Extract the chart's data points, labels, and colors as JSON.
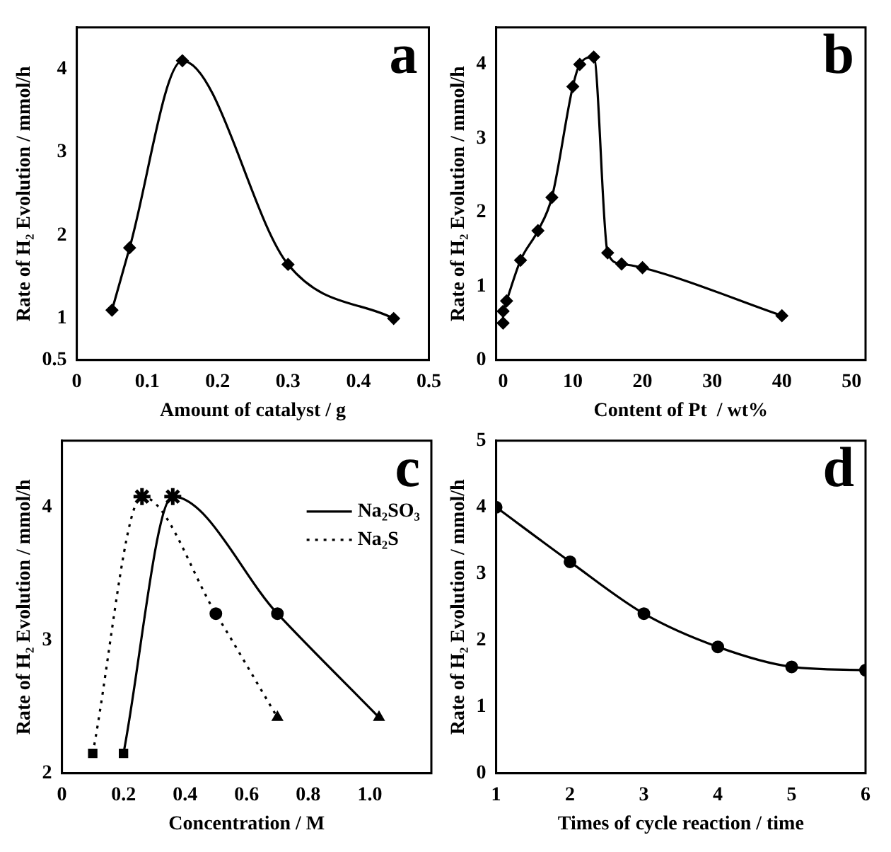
{
  "chart_data": [
    {
      "type": "line",
      "annotations": [
        "a"
      ],
      "xlabel": "Amount of catalyst / g",
      "ylabel": "Rate of H₂ Evolution / mmol/h",
      "x": [
        0.05,
        0.075,
        0.15,
        0.3,
        0.45
      ],
      "xlim": [
        0,
        0.5
      ],
      "xticks": [
        0,
        0.1,
        0.2,
        0.3,
        0.4,
        0.5
      ],
      "ylim": [
        0.5,
        4.5
      ],
      "yticks": [
        0.5,
        1,
        2,
        3,
        4
      ],
      "marker": "diamond",
      "series": [
        {
          "color": "#000000",
          "values": [
            1.1,
            1.85,
            4.1,
            1.65,
            1.0
          ]
        }
      ]
    },
    {
      "type": "line",
      "annotations": [
        "b"
      ],
      "xlabel": "Content of Pt  / wt%",
      "ylabel": "Rate of H₂ Evolution / mmol/h",
      "x": [
        0,
        0,
        0.5,
        2.5,
        5,
        7,
        10,
        11,
        13,
        15,
        17,
        20,
        40
      ],
      "xlim": [
        -1,
        52
      ],
      "xticks": [
        0,
        10,
        20,
        30,
        40,
        50
      ],
      "ylim": [
        0,
        4.5
      ],
      "yticks": [
        0,
        1,
        2,
        3,
        4
      ],
      "marker": "diamond",
      "series": [
        {
          "color": "#000000",
          "values": [
            0.5,
            0.66,
            0.8,
            1.35,
            1.75,
            2.2,
            3.7,
            4.0,
            4.1,
            1.45,
            1.3,
            1.25,
            0.6
          ]
        }
      ]
    },
    {
      "type": "line",
      "annotations": [
        "c"
      ],
      "xlabel": "Concentration / M",
      "ylabel": "Rate of H₂ Evolution / mmol/h",
      "xlim": [
        0,
        1.2
      ],
      "xticks": [
        0,
        0.2,
        0.4,
        0.6,
        0.8,
        {
          "value": 1,
          "label": "1.0"
        }
      ],
      "ylim": [
        2,
        4.5
      ],
      "yticks": [
        2,
        3,
        4
      ],
      "marker": [
        "square",
        "star",
        "circle",
        "triangle"
      ],
      "legend": "top right",
      "series": [
        {
          "name": "Na₂SO₃",
          "color": "#000000",
          "line_style": "solid",
          "x": [
            0.2,
            0.36,
            0.7,
            1.03
          ],
          "values": [
            2.15,
            4.08,
            3.2,
            2.42
          ]
        },
        {
          "name": "Na₂S",
          "color": "#000000",
          "line_style": "dotted",
          "x": [
            0.1,
            0.26,
            0.5,
            0.7
          ],
          "values": [
            2.15,
            4.08,
            3.2,
            2.42
          ]
        }
      ]
    },
    {
      "type": "line",
      "annotations": [
        "d"
      ],
      "xlabel": "Times of cycle reaction / time",
      "ylabel": "Rate of H₂ Evolution / mmol/h",
      "x": [
        1,
        2,
        3,
        4,
        5,
        6
      ],
      "xlim": [
        1,
        6
      ],
      "xticks": [
        1,
        2,
        3,
        4,
        5,
        6
      ],
      "ylim": [
        0,
        5
      ],
      "yticks": [
        0,
        1,
        2,
        3,
        4,
        5
      ],
      "marker": "circle",
      "series": [
        {
          "color": "#000000",
          "values": [
            4.0,
            3.18,
            2.4,
            1.9,
            1.6,
            1.55
          ]
        }
      ]
    }
  ]
}
